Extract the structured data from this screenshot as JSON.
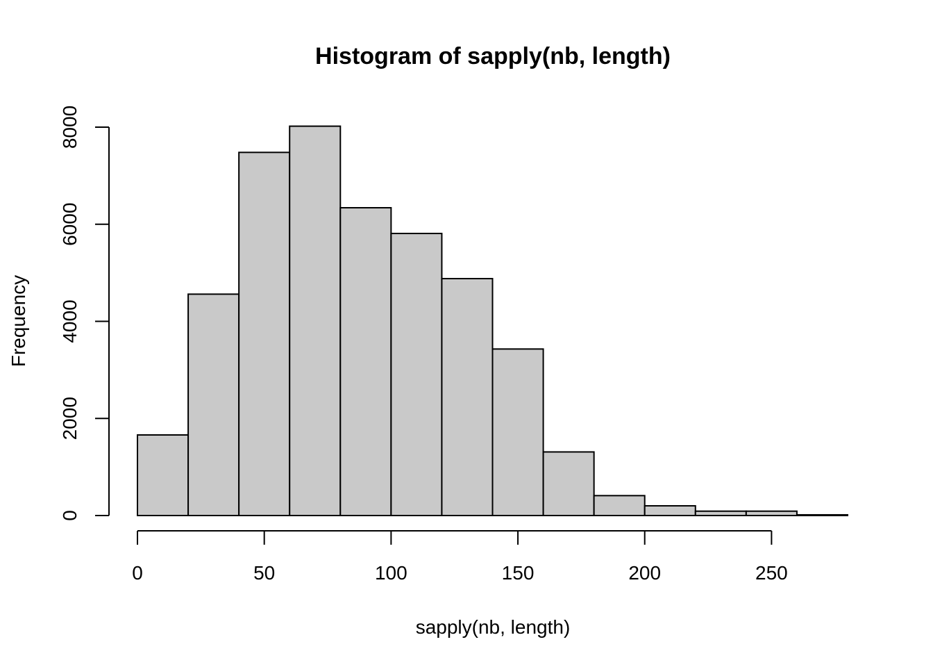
{
  "chart_data": {
    "type": "bar",
    "title": "Histogram of sapply(nb, length)",
    "xlabel": "sapply(nb, length)",
    "ylabel": "Frequency",
    "bin_width": 20,
    "bins": [
      {
        "start": 0,
        "end": 20,
        "count": 1660
      },
      {
        "start": 20,
        "end": 40,
        "count": 4560
      },
      {
        "start": 40,
        "end": 60,
        "count": 7480
      },
      {
        "start": 60,
        "end": 80,
        "count": 8020
      },
      {
        "start": 80,
        "end": 100,
        "count": 6340
      },
      {
        "start": 100,
        "end": 120,
        "count": 5810
      },
      {
        "start": 120,
        "end": 140,
        "count": 4880
      },
      {
        "start": 140,
        "end": 160,
        "count": 3430
      },
      {
        "start": 160,
        "end": 180,
        "count": 1310
      },
      {
        "start": 180,
        "end": 200,
        "count": 410
      },
      {
        "start": 200,
        "end": 220,
        "count": 200
      },
      {
        "start": 220,
        "end": 240,
        "count": 90
      },
      {
        "start": 240,
        "end": 260,
        "count": 90
      },
      {
        "start": 260,
        "end": 280,
        "count": 15
      }
    ],
    "xlim": [
      0,
      280
    ],
    "ylim": [
      0,
      8000
    ],
    "x_ticks": [
      0,
      50,
      100,
      150,
      200,
      250
    ],
    "x_tick_labels": [
      "0",
      "50",
      "100",
      "150",
      "200",
      "250"
    ],
    "y_ticks": [
      0,
      2000,
      4000,
      6000,
      8000
    ],
    "y_tick_labels": [
      "0",
      "2000",
      "4000",
      "6000",
      "8000"
    ],
    "grid": false,
    "bar_color": "#c9c9c9",
    "edge_color": "#000000"
  }
}
